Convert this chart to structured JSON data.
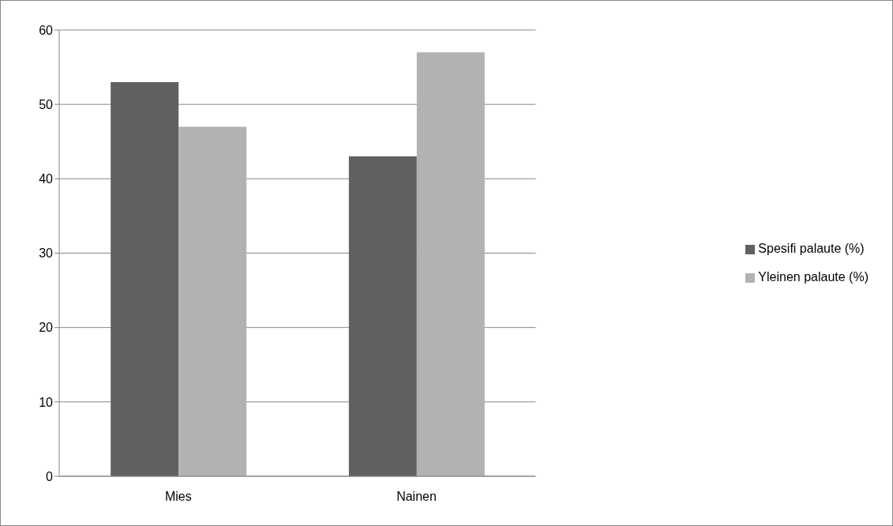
{
  "chart_data": {
    "type": "bar",
    "categories": [
      "Mies",
      "Nainen"
    ],
    "series": [
      {
        "name": "Spesifi palaute (%)",
        "color": "#606060",
        "values": [
          53,
          43
        ]
      },
      {
        "name": "Yleinen palaute (%)",
        "color": "#b2b2b2",
        "values": [
          47,
          57
        ]
      }
    ],
    "ylim": [
      0,
      60
    ],
    "yticks": [
      0,
      10,
      20,
      30,
      40,
      50,
      60
    ],
    "grid": "y",
    "legend": "right"
  }
}
